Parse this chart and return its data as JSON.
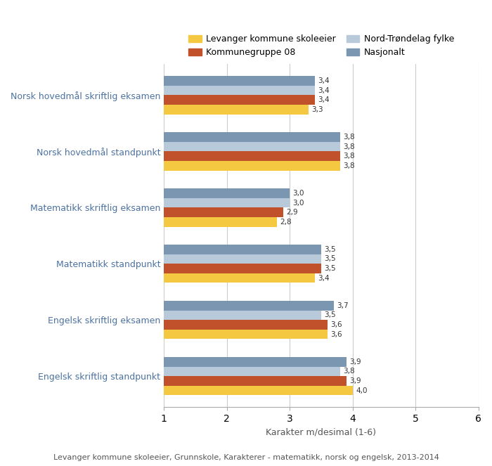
{
  "categories": [
    "Norsk hovedmål skriftlig eksamen",
    "Norsk hovedmål standpunkt",
    "Matematikk skriftlig eksamen",
    "Matematikk standpunkt",
    "Engelsk skriftlig eksamen",
    "Engelsk skriftlig standpunkt"
  ],
  "series": [
    {
      "name": "Levanger kommune skoleeier",
      "color": "#F5C842",
      "values": [
        3.3,
        3.8,
        2.8,
        3.4,
        3.6,
        4.0
      ]
    },
    {
      "name": "Kommunegruppe 08",
      "color": "#C0512A",
      "values": [
        3.4,
        3.8,
        2.9,
        3.5,
        3.6,
        3.9
      ]
    },
    {
      "name": "Nord-Trøndelag fylke",
      "color": "#B8C9D9",
      "values": [
        3.4,
        3.8,
        3.0,
        3.5,
        3.5,
        3.8
      ]
    },
    {
      "name": "Nasjonalt",
      "color": "#7A96B0",
      "values": [
        3.4,
        3.8,
        3.0,
        3.5,
        3.7,
        3.9
      ]
    }
  ],
  "xlabel": "Karakter m/desimal (1-6)",
  "xstart": 1,
  "xlim": [
    1,
    6
  ],
  "xticks": [
    1,
    2,
    3,
    4,
    5,
    6
  ],
  "bar_height": 0.17,
  "background_color": "#ffffff",
  "plot_bg_color": "#ffffff",
  "grid_color": "#cccccc",
  "category_label_color": "#4C72A0",
  "value_label_fontsize": 7.5,
  "axis_label_fontsize": 9,
  "category_fontsize": 9,
  "legend_fontsize": 9,
  "footer_text": "Levanger kommune skoleeier, Grunnskole, Karakterer - matematikk, norsk og engelsk, 2013-2014",
  "footer_fontsize": 8
}
